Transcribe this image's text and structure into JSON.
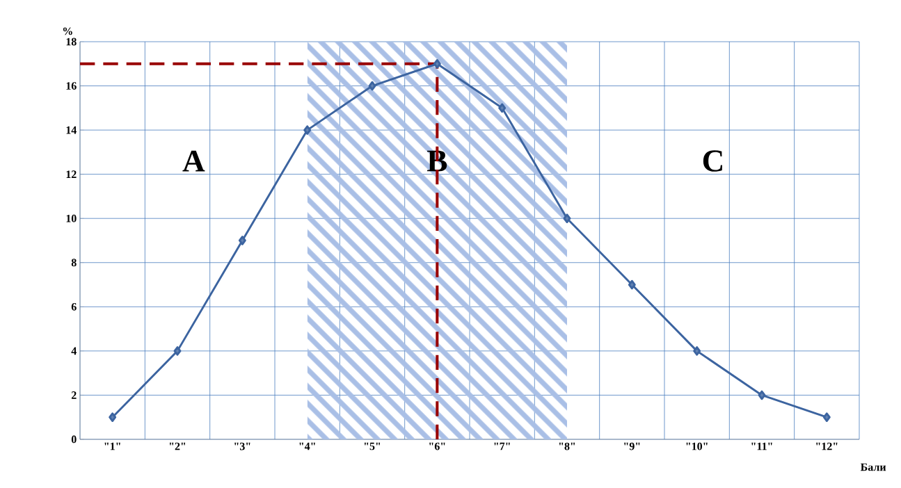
{
  "chart_data": {
    "type": "line",
    "categories": [
      "\"1\"",
      "\"2\"",
      "\"3\"",
      "\"4\"",
      "\"5\"",
      "\"6\"",
      "\"7\"",
      "\"8\"",
      "\"9\"",
      "\"10\"",
      "\"11\"",
      "\"12\""
    ],
    "series": [
      {
        "color": "#3c64a0",
        "values": [
          1,
          4,
          9,
          14,
          16,
          17,
          15,
          10,
          7,
          4,
          2,
          1
        ]
      }
    ],
    "xlabel": "Бали",
    "ylabel": "%",
    "ylim": [
      0,
      18
    ],
    "yticks": [
      0,
      2,
      4,
      6,
      8,
      10,
      12,
      14,
      16,
      18
    ],
    "grid": true,
    "marker": "diamond",
    "line_style": "solid",
    "ref_lines": [
      {
        "axis": "y",
        "value": 17,
        "color": "#990000",
        "line_style": "dashed"
      },
      {
        "axis": "x",
        "value": "\"6\"",
        "color": "#990000",
        "line_style": "dashed"
      }
    ],
    "bands": [
      {
        "axis": "x",
        "from": "\"4\"",
        "to": "\"8\"",
        "label": "B",
        "color": "#a9bfe6"
      }
    ],
    "annotations": [
      "A",
      "C"
    ]
  }
}
